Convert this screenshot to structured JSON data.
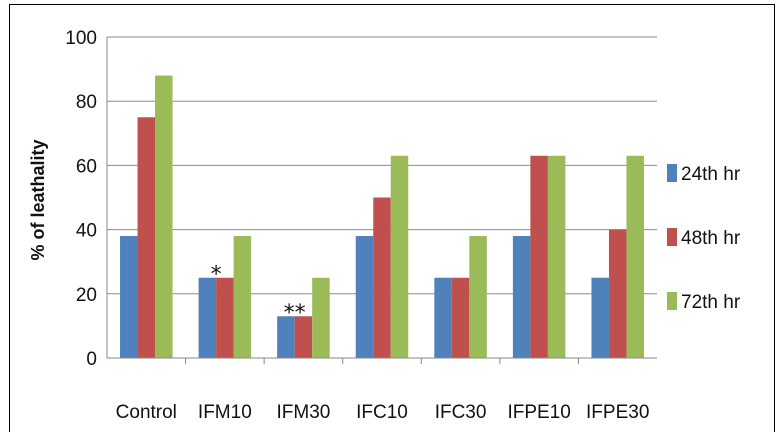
{
  "chart_data": {
    "type": "bar",
    "title": "",
    "xlabel": "",
    "ylabel": "% of leathality",
    "ylim": [
      0,
      100
    ],
    "yticks": [
      0,
      20,
      40,
      60,
      80,
      100
    ],
    "grid": true,
    "legend_position": "right",
    "categories": [
      "Control",
      "IFM10",
      "IFM30",
      "IFC10",
      "IFC30",
      "IFPE10",
      "IFPE30"
    ],
    "series": [
      {
        "name": "24th hr",
        "color": "#4f81bd",
        "values": [
          38,
          25,
          13,
          38,
          25,
          38,
          25
        ]
      },
      {
        "name": "48th hr",
        "color": "#c0504d",
        "values": [
          75,
          25,
          13,
          50,
          25,
          63,
          40
        ]
      },
      {
        "name": "72th hr",
        "color": "#9bbb59",
        "values": [
          88,
          38,
          25,
          63,
          38,
          63,
          63
        ]
      }
    ],
    "annotations": [
      {
        "text": "*",
        "category": "IFM10",
        "value": 27
      },
      {
        "text": "**",
        "category": "IFM30",
        "value": 15
      }
    ]
  }
}
